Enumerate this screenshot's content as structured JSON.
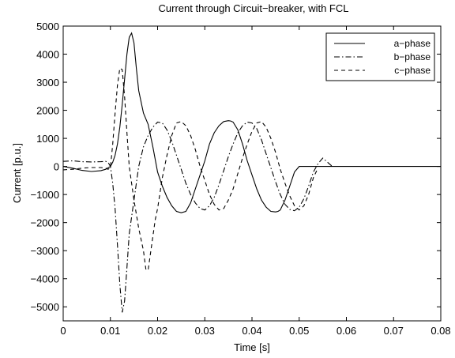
{
  "chart_data": {
    "type": "line",
    "title": "Current through Circuit−breaker, with FCL",
    "xlabel": "Time [s]",
    "ylabel": "Current [p.u.]",
    "xlim": [
      0,
      0.08
    ],
    "ylim": [
      -5500,
      5000
    ],
    "xticks": [
      0,
      0.01,
      0.02,
      0.03,
      0.04,
      0.05,
      0.06,
      0.07,
      0.08
    ],
    "xtick_labels": [
      "0",
      "0.01",
      "0.02",
      "0.03",
      "0.04",
      "0.05",
      "0.06",
      "0.07",
      "0.08"
    ],
    "yticks": [
      5000,
      4000,
      3000,
      2000,
      1000,
      0,
      -1000,
      -2000,
      -3000,
      -4000,
      -5000
    ],
    "ytick_labels": [
      "5000",
      "4000",
      "3000",
      "2000",
      "1000",
      "0",
      "−1000",
      "−2000",
      "−3000",
      "−4000",
      "−5000"
    ],
    "grid": false,
    "legend_position": "top-right",
    "series": [
      {
        "name": "a−phase",
        "style": "solid",
        "x": [
          0,
          0.002,
          0.004,
          0.006,
          0.008,
          0.009,
          0.0095,
          0.01,
          0.0105,
          0.011,
          0.0115,
          0.012,
          0.0125,
          0.013,
          0.0135,
          0.014,
          0.0145,
          0.015,
          0.0155,
          0.016,
          0.017,
          0.018,
          0.019,
          0.02,
          0.021,
          0.022,
          0.023,
          0.024,
          0.025,
          0.026,
          0.027,
          0.028,
          0.029,
          0.03,
          0.031,
          0.032,
          0.033,
          0.034,
          0.035,
          0.0355,
          0.036,
          0.037,
          0.038,
          0.039,
          0.04,
          0.041,
          0.042,
          0.043,
          0.044,
          0.045,
          0.0455,
          0.046,
          0.047,
          0.048,
          0.049,
          0.05,
          0.0505,
          0.052,
          0.06,
          0.07,
          0.08
        ],
        "y": [
          0,
          -60,
          -140,
          -180,
          -150,
          -100,
          -50,
          0,
          150,
          400,
          800,
          1400,
          2200,
          3100,
          4000,
          4600,
          4750,
          4400,
          3500,
          2700,
          1900,
          1500,
          700,
          -200,
          -700,
          -1100,
          -1400,
          -1600,
          -1650,
          -1600,
          -1300,
          -800,
          -300,
          200,
          800,
          1200,
          1450,
          1600,
          1630,
          1620,
          1580,
          1300,
          800,
          200,
          -300,
          -800,
          -1200,
          -1450,
          -1600,
          -1620,
          -1600,
          -1550,
          -1200,
          -700,
          -200,
          0,
          0,
          0,
          0,
          0,
          0
        ]
      },
      {
        "name": "b−phase",
        "style": "dashdot",
        "x": [
          0,
          0.002,
          0.004,
          0.006,
          0.008,
          0.009,
          0.0095,
          0.01,
          0.0105,
          0.011,
          0.0115,
          0.012,
          0.0125,
          0.013,
          0.0135,
          0.014,
          0.015,
          0.016,
          0.017,
          0.018,
          0.019,
          0.02,
          0.021,
          0.022,
          0.023,
          0.024,
          0.025,
          0.026,
          0.027,
          0.028,
          0.029,
          0.03,
          0.031,
          0.032,
          0.033,
          0.034,
          0.035,
          0.036,
          0.037,
          0.038,
          0.039,
          0.04,
          0.041,
          0.042,
          0.043,
          0.044,
          0.045,
          0.046,
          0.047,
          0.048,
          0.049,
          0.05,
          0.051,
          0.052,
          0.053,
          0.054,
          0.055,
          0.056,
          0.057
        ],
        "y": [
          180,
          200,
          170,
          160,
          170,
          180,
          150,
          0,
          -600,
          -1500,
          -2800,
          -4200,
          -5200,
          -4800,
          -3600,
          -2400,
          -1200,
          0,
          700,
          1100,
          1400,
          1580,
          1550,
          1300,
          900,
          400,
          -100,
          -600,
          -1000,
          -1300,
          -1500,
          -1550,
          -1400,
          -1100,
          -650,
          -150,
          350,
          800,
          1200,
          1450,
          1580,
          1550,
          1350,
          950,
          450,
          -50,
          -550,
          -1000,
          -1350,
          -1530,
          -1580,
          -1450,
          -1150,
          -700,
          -200,
          100,
          300,
          150,
          0
        ]
      },
      {
        "name": "c−phase",
        "style": "dashed",
        "x": [
          0,
          0.002,
          0.004,
          0.006,
          0.008,
          0.009,
          0.0095,
          0.01,
          0.0105,
          0.011,
          0.0115,
          0.012,
          0.0125,
          0.013,
          0.0135,
          0.014,
          0.015,
          0.016,
          0.017,
          0.0175,
          0.018,
          0.0185,
          0.019,
          0.0195,
          0.02,
          0.021,
          0.022,
          0.023,
          0.024,
          0.025,
          0.026,
          0.027,
          0.028,
          0.029,
          0.03,
          0.031,
          0.032,
          0.033,
          0.034,
          0.035,
          0.036,
          0.037,
          0.038,
          0.039,
          0.04,
          0.041,
          0.042,
          0.043,
          0.044,
          0.045,
          0.046,
          0.047,
          0.048,
          0.049,
          0.05,
          0.051,
          0.052,
          0.053,
          0.054
        ],
        "y": [
          -120,
          -100,
          -60,
          -40,
          -40,
          -60,
          -100,
          -50,
          800,
          1900,
          2900,
          3500,
          3450,
          2500,
          1200,
          0,
          -1200,
          -2200,
          -3000,
          -3650,
          -3700,
          -3100,
          -2500,
          -1900,
          -1500,
          -400,
          400,
          1100,
          1550,
          1600,
          1450,
          1100,
          600,
          0,
          -500,
          -1000,
          -1350,
          -1550,
          -1500,
          -1200,
          -800,
          -250,
          300,
          800,
          1250,
          1550,
          1600,
          1400,
          1000,
          500,
          -100,
          -600,
          -1050,
          -1400,
          -1550,
          -1400,
          -1000,
          -400,
          -50
        ]
      }
    ]
  }
}
